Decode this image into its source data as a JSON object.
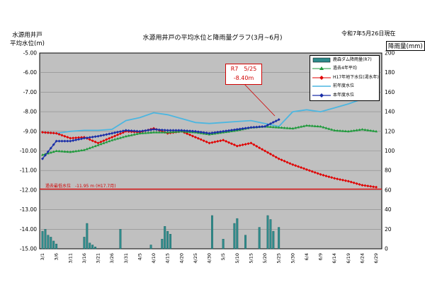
{
  "header": {
    "title": "水源用井戸の平均水位と降雨量グラフ(3月~6月)",
    "date_note": "令和7年5月26日現在",
    "left_axis_label": [
      "水源用井戸",
      "平均水位(m)"
    ],
    "right_axis_label": "降雨量(mm)"
  },
  "annotations": {
    "callout_line1": "R7　5/25",
    "callout_line2": "-8.40m",
    "min_level": "過去最低水位　-11.95 m (H17.7月)"
  },
  "colors": {
    "plot_bg": "#c0c0c0",
    "rain": "#2e8b8b",
    "past4yr": "#1f9a3c",
    "h17": "#e00000",
    "prev_year": "#4cb6e0",
    "this_year": "#1a2ea8",
    "min_line": "#e00000"
  },
  "chart_data": {
    "type": "line",
    "title": "水源用井戸の平均水位と降雨量グラフ(3月~6月)",
    "ylabel": "水源用井戸 平均水位(m)",
    "ylabel_right": "降雨量(mm)",
    "ylim": [
      -15.0,
      -5.0
    ],
    "ylim_right": [
      0,
      200
    ],
    "yticks": [
      "-5.00",
      "-6.00",
      "-7.00",
      "-8.00",
      "-9.00",
      "-10.00",
      "-11.00",
      "-12.00",
      "-13.00",
      "-14.00",
      "-15.00"
    ],
    "yticks_right": [
      "200",
      "180",
      "160",
      "140",
      "120",
      "100",
      "80",
      "60",
      "40",
      "20",
      "0"
    ],
    "xticks": [
      "3/1",
      "3/6",
      "3/11",
      "3/16",
      "3/21",
      "3/26",
      "3/31",
      "4/5",
      "4/10",
      "4/15",
      "4/20",
      "4/25",
      "4/30",
      "5/5",
      "5/10",
      "5/15",
      "5/20",
      "5/25",
      "5/30",
      "6/4",
      "6/9",
      "6/14",
      "6/19",
      "6/24",
      "6/29"
    ],
    "grid": true,
    "legend_position": "top-right",
    "reference_line": {
      "value": -11.95,
      "label": "過去最低水位　-11.95 m (H17.7月)"
    },
    "series": [
      {
        "name": "鹿森ダム降雨量(R7)",
        "type": "bar",
        "axis": "right",
        "x": [
          "3/1",
          "3/2",
          "3/3",
          "3/4",
          "3/5",
          "3/6",
          "3/16",
          "3/17",
          "3/18",
          "3/19",
          "3/20",
          "3/29",
          "4/9",
          "4/13",
          "4/14",
          "4/15",
          "4/16",
          "5/1",
          "5/5",
          "5/9",
          "5/10",
          "5/13",
          "5/18",
          "5/21",
          "5/22",
          "5/23",
          "5/25"
        ],
        "values": [
          18,
          20,
          14,
          12,
          8,
          5,
          12,
          26,
          6,
          4,
          2,
          20,
          4,
          10,
          23,
          18,
          15,
          34,
          10,
          26,
          31,
          14,
          22,
          34,
          30,
          18,
          22
        ]
      },
      {
        "name": "過去4年平均",
        "type": "line",
        "axis": "left",
        "x": [
          "3/1",
          "3/6",
          "3/11",
          "3/16",
          "3/21",
          "3/26",
          "3/31",
          "4/5",
          "4/10",
          "4/15",
          "4/20",
          "4/25",
          "4/30",
          "5/5",
          "5/10",
          "5/15",
          "5/20",
          "5/25",
          "5/30",
          "6/4",
          "6/9",
          "6/14",
          "6/19",
          "6/24",
          "6/29"
        ],
        "values": [
          -10.2,
          -10.0,
          -10.05,
          -9.95,
          -9.7,
          -9.45,
          -9.25,
          -9.1,
          -9.05,
          -9.05,
          -9.0,
          -9.05,
          -9.15,
          -9.05,
          -8.95,
          -8.8,
          -8.75,
          -8.8,
          -8.85,
          -8.7,
          -8.75,
          -8.95,
          -9.0,
          -8.9,
          -9.0
        ]
      },
      {
        "name": "H17年地下水位(渇水年)",
        "type": "line",
        "axis": "left",
        "x": [
          "3/1",
          "3/6",
          "3/11",
          "3/16",
          "3/21",
          "3/26",
          "3/31",
          "4/5",
          "4/10",
          "4/15",
          "4/20",
          "4/25",
          "4/30",
          "5/5",
          "5/10",
          "5/15",
          "5/20",
          "5/25",
          "5/30",
          "6/4",
          "6/9",
          "6/14",
          "6/19",
          "6/24",
          "6/29"
        ],
        "values": [
          -9.05,
          -9.1,
          -9.35,
          -9.3,
          -9.6,
          -9.3,
          -9.0,
          -9.05,
          -8.85,
          -9.1,
          -9.0,
          -9.3,
          -9.6,
          -9.45,
          -9.75,
          -9.6,
          -10.0,
          -10.4,
          -10.7,
          -10.95,
          -11.2,
          -11.4,
          -11.55,
          -11.75,
          -11.85
        ]
      },
      {
        "name": "前年度水位",
        "type": "line",
        "axis": "left",
        "x": [
          "3/1",
          "3/6",
          "3/11",
          "3/16",
          "3/21",
          "3/26",
          "3/31",
          "4/5",
          "4/10",
          "4/15",
          "4/20",
          "4/25",
          "4/30",
          "5/5",
          "5/10",
          "5/15",
          "5/20",
          "5/25",
          "5/30",
          "6/4",
          "6/9",
          "6/14",
          "6/19",
          "6/24",
          "6/29"
        ],
        "values": [
          -9.05,
          -9.1,
          -9.0,
          -8.95,
          -8.95,
          -8.9,
          -8.45,
          -8.3,
          -8.05,
          -8.15,
          -8.35,
          -8.55,
          -8.6,
          -8.55,
          -8.5,
          -8.45,
          -8.6,
          -8.75,
          -8.0,
          -7.9,
          -8.0,
          -7.8,
          -7.6,
          -7.35,
          -7.2
        ]
      },
      {
        "name": "本年度水位",
        "type": "line",
        "axis": "left",
        "x": [
          "3/1",
          "3/6",
          "3/11",
          "3/16",
          "3/21",
          "3/26",
          "3/31",
          "4/5",
          "4/10",
          "4/15",
          "4/20",
          "4/25",
          "4/30",
          "5/5",
          "5/10",
          "5/15",
          "5/20",
          "5/25"
        ],
        "values": [
          -10.4,
          -9.5,
          -9.5,
          -9.35,
          -9.25,
          -9.1,
          -8.95,
          -9.0,
          -8.9,
          -8.95,
          -8.95,
          -9.0,
          -9.1,
          -9.0,
          -8.9,
          -8.8,
          -8.75,
          -8.4
        ]
      }
    ]
  }
}
